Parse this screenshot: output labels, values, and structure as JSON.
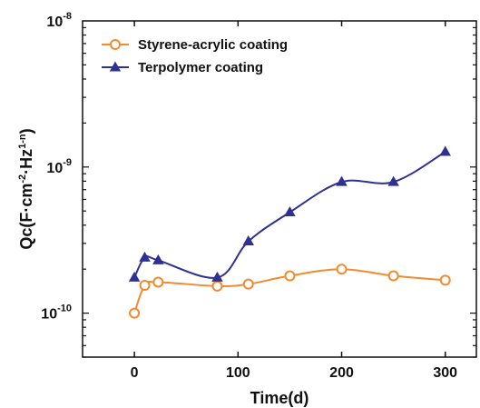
{
  "chart_data": {
    "type": "line",
    "xlabel": "Time(d)",
    "ylabel_main": "Qc(F·cm",
    "ylabel_exp1": "-2",
    "ylabel_mid": "·Hz",
    "ylabel_exp2": "1-n",
    "ylabel_end": ")",
    "xlim": [
      -50,
      330
    ],
    "ylim": [
      5e-11,
      1e-08
    ],
    "y_scale": "log",
    "x_ticks": [
      0,
      100,
      200,
      300
    ],
    "y_ticks": [
      {
        "value": 1e-10,
        "base": "10",
        "exp": "-10"
      },
      {
        "value": 1e-09,
        "base": "10",
        "exp": "-9"
      },
      {
        "value": 1e-08,
        "base": "10",
        "exp": "-8"
      }
    ],
    "legend_position": "top-left",
    "series": [
      {
        "name": "Styrene-acrylic coating",
        "color": "#f28a30",
        "marker": "circle-open",
        "x": [
          0,
          10,
          23,
          80,
          110,
          150,
          200,
          250,
          300
        ],
        "y": [
          1e-10,
          1.55e-10,
          1.63e-10,
          1.53e-10,
          1.58e-10,
          1.8e-10,
          2e-10,
          1.8e-10,
          1.68e-10
        ]
      },
      {
        "name": "Terpolymer coating",
        "color": "#2e3192",
        "marker": "triangle-filled",
        "x": [
          0,
          10,
          23,
          80,
          110,
          150,
          200,
          250,
          300
        ],
        "y": [
          1.75e-10,
          2.4e-10,
          2.3e-10,
          1.75e-10,
          3.1e-10,
          4.9e-10,
          7.9e-10,
          7.9e-10,
          1.27e-09
        ]
      }
    ]
  }
}
